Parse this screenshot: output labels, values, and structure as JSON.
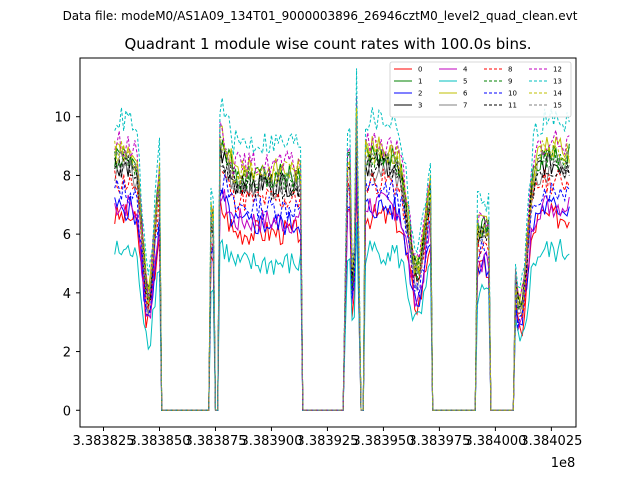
{
  "suptitle": "Data file: modeM0/AS1A09_134T01_9000003896_26946cztM0_level2_quad_clean.evt",
  "chart_data": {
    "type": "line",
    "title": "Quadrant 1 module wise count rates with 100.0s bins.",
    "xlabel": "",
    "ylabel": "",
    "x_offset_label": "1e8",
    "x_ticks": [
      3.383825,
      3.38385,
      3.383875,
      3.3839,
      3.383925,
      3.38395,
      3.383975,
      3.384,
      3.384025
    ],
    "x_tick_labels": [
      "3.383825",
      "3.383850",
      "3.383875",
      "3.383900",
      "3.383925",
      "3.383950",
      "3.383975",
      "3.384000",
      "3.384025"
    ],
    "y_ticks": [
      0,
      2,
      4,
      6,
      8,
      10
    ],
    "y_tick_labels": [
      "0",
      "2",
      "4",
      "6",
      "8",
      "10"
    ],
    "xlim": [
      3.3838145,
      3.384036
    ],
    "ylim": [
      -0.57,
      12.0
    ],
    "grid": false,
    "legend_position": "top-right",
    "legend_columns": 4,
    "segments": [
      {
        "start": 3.38383,
        "end": 3.38385,
        "shape": "dip",
        "center": 3.383845,
        "depth": 0.55
      },
      {
        "start": 3.383873,
        "end": 3.383874,
        "shape": "spike"
      },
      {
        "start": 3.383877,
        "end": 3.383913,
        "shape": "high"
      },
      {
        "start": 3.383933,
        "end": 3.383936,
        "shape": "spike"
      },
      {
        "start": 3.383937,
        "end": 3.383939,
        "shape": "spike"
      },
      {
        "start": 3.383942,
        "end": 3.383971,
        "shape": "dip",
        "center": 3.383965,
        "depth": 0.45
      },
      {
        "start": 3.383992,
        "end": 3.383997,
        "shape": "bump"
      },
      {
        "start": 3.384009,
        "end": 3.384033,
        "shape": "dip",
        "center": 3.384011,
        "depth": 0.6
      }
    ],
    "series": [
      {
        "name": "0",
        "color": "#ff0000",
        "dash": "solid",
        "base": 6.6
      },
      {
        "name": "1",
        "color": "#008000",
        "dash": "solid",
        "base": 8.7
      },
      {
        "name": "2",
        "color": "#0000ff",
        "dash": "solid",
        "base": 6.9
      },
      {
        "name": "3",
        "color": "#000000",
        "dash": "solid",
        "base": 8.4
      },
      {
        "name": "4",
        "color": "#bf00bf",
        "dash": "solid",
        "base": 7.0
      },
      {
        "name": "5",
        "color": "#00bfbf",
        "dash": "solid",
        "base": 5.4
      },
      {
        "name": "6",
        "color": "#bfbf00",
        "dash": "solid",
        "base": 8.9
      },
      {
        "name": "7",
        "color": "#808080",
        "dash": "solid",
        "base": 8.2
      },
      {
        "name": "8",
        "color": "#ff0000",
        "dash": "dashed",
        "base": 7.8
      },
      {
        "name": "9",
        "color": "#008000",
        "dash": "dashed",
        "base": 8.6
      },
      {
        "name": "10",
        "color": "#0000ff",
        "dash": "dashed",
        "base": 7.5
      },
      {
        "name": "11",
        "color": "#000000",
        "dash": "dashed",
        "base": 8.3
      },
      {
        "name": "12",
        "color": "#bf00bf",
        "dash": "dashed",
        "base": 9.1
      },
      {
        "name": "13",
        "color": "#00bfbf",
        "dash": "dashed",
        "base": 9.9
      },
      {
        "name": "14",
        "color": "#bfbf00",
        "dash": "dashed",
        "base": 8.8
      },
      {
        "name": "15",
        "color": "#808080",
        "dash": "dashed",
        "base": 8.5
      }
    ]
  }
}
